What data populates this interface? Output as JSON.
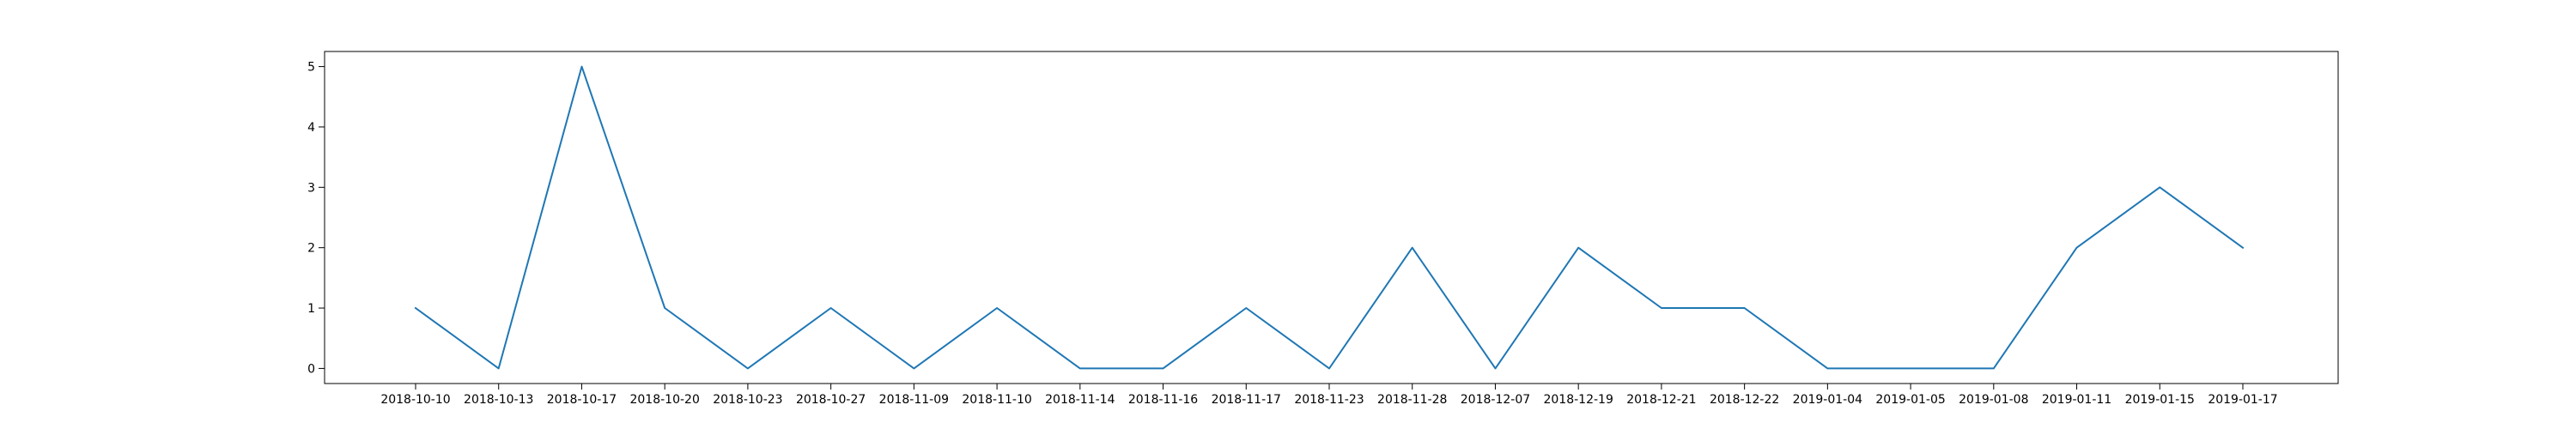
{
  "chart_data": {
    "type": "line",
    "title": "",
    "xlabel": "",
    "ylabel": "",
    "categories": [
      "2018-10-10",
      "2018-10-13",
      "2018-10-17",
      "2018-10-20",
      "2018-10-23",
      "2018-10-27",
      "2018-11-09",
      "2018-11-10",
      "2018-11-14",
      "2018-11-16",
      "2018-11-17",
      "2018-11-23",
      "2018-11-28",
      "2018-12-07",
      "2018-12-19",
      "2018-12-21",
      "2018-12-22",
      "2019-01-04",
      "2019-01-05",
      "2019-01-08",
      "2019-01-11",
      "2019-01-15",
      "2019-01-17"
    ],
    "values": [
      1,
      0,
      5,
      1,
      0,
      1,
      0,
      1,
      0,
      0,
      1,
      0,
      2,
      0,
      2,
      1,
      1,
      0,
      0,
      0,
      2,
      3,
      2
    ],
    "ylim": [
      -0.25,
      5.25
    ],
    "yticks": [
      "0",
      "1",
      "2",
      "3",
      "4",
      "5"
    ],
    "grid": false,
    "line_color": "#1f77b4"
  }
}
